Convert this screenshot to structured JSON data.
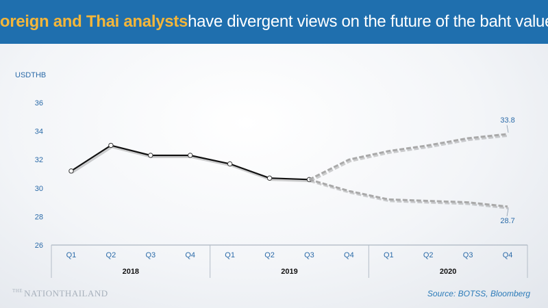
{
  "header": {
    "title_accent": "Foreign and Thai analysts",
    "title_rest": " have divergent views on the future of the baht value."
  },
  "footer": {
    "logo": "NATIONTHAILAND",
    "logo_prefix": "THE",
    "source": "Source: BOTSS, Bloomberg"
  },
  "colors": {
    "banner": "#1f6fae",
    "accent": "#f4b63a",
    "actual_line": "#111111",
    "forecast_line": "#a9a9a9",
    "axis_text": "#2a6aa8"
  },
  "chart_data": {
    "type": "line",
    "title": "",
    "ylabel": "USDTHB",
    "xlabel": "",
    "ylim": [
      26,
      36
    ],
    "yticks": [
      26,
      28,
      30,
      32,
      34,
      36
    ],
    "quarters": [
      "Q1",
      "Q2",
      "Q3",
      "Q4",
      "Q1",
      "Q2",
      "Q3",
      "Q4",
      "Q1",
      "Q2",
      "Q3",
      "Q4"
    ],
    "years": [
      {
        "label": "2018",
        "start": 0,
        "end": 3
      },
      {
        "label": "2019",
        "start": 4,
        "end": 7
      },
      {
        "label": "2020",
        "start": 8,
        "end": 11
      }
    ],
    "grid": false,
    "series": [
      {
        "style": "solid",
        "x_index": [
          0,
          1,
          2,
          3,
          4,
          5,
          6
        ],
        "values": [
          31.2,
          33.0,
          32.3,
          32.3,
          31.7,
          30.7,
          30.6
        ]
      },
      {
        "style": "dashed-upper",
        "x_index": [
          6,
          7,
          8,
          9,
          10,
          11
        ],
        "values": [
          30.6,
          32.0,
          32.6,
          33.0,
          33.5,
          33.8
        ]
      },
      {
        "style": "dashed-lower",
        "x_index": [
          6,
          7,
          8,
          9,
          10,
          11
        ],
        "values": [
          30.6,
          29.8,
          29.2,
          29.1,
          29.0,
          28.7
        ]
      }
    ],
    "annotations": [
      {
        "text": "33.8",
        "series": 1,
        "point": 5
      },
      {
        "text": "28.7",
        "series": 2,
        "point": 5
      }
    ]
  }
}
